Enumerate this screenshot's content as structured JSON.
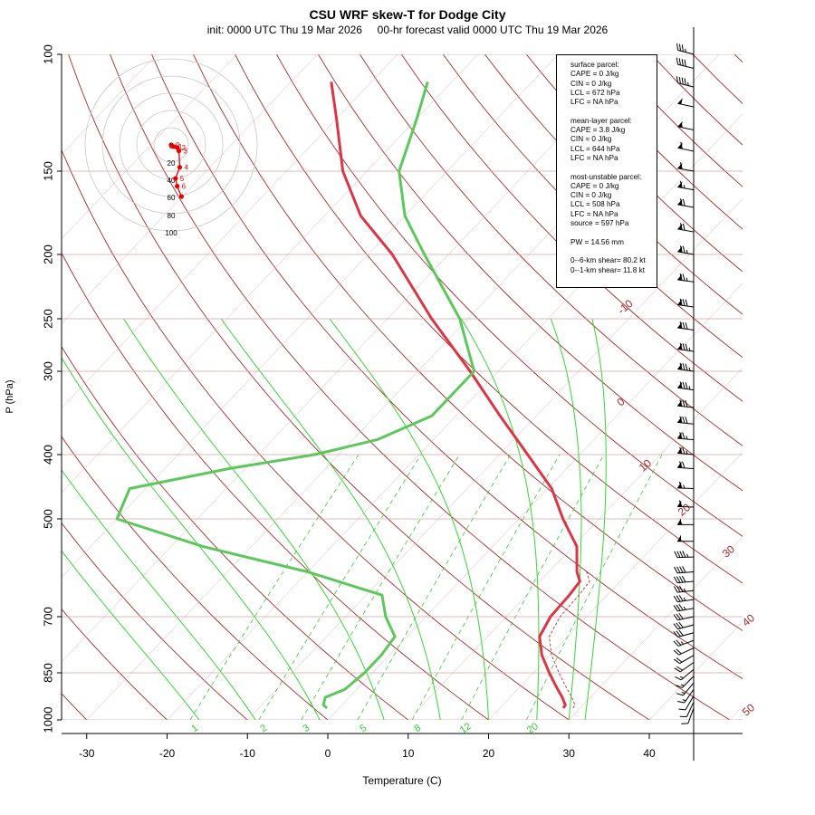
{
  "title": "CSU WRF skew-T for Dodge City",
  "subtitle": "init: 0000 UTC Thu 19 Mar 2026     00-hr forecast valid 0000 UTC Thu 19 Mar 2026",
  "info": {
    "surface": [
      "surface parcel:",
      "CAPE = 0 J/kg",
      "CIN = 0 J/kg",
      "LCL = 672 hPa",
      "LFC = NA hPa"
    ],
    "mean_layer": [
      "mean-layer parcel:",
      "CAPE = 3.8 J/kg",
      "CIN = 0 J/kg",
      "LCL = 644 hPa",
      "LFC = NA hPa"
    ],
    "most_unstable": [
      "most-unstable parcel:",
      "CAPE = 0 J/kg",
      "CIN = 0 J/kg",
      "LCL = 508 hPa",
      "LFC = NA hPa",
      "source = 597 hPa"
    ],
    "pw": [
      "PW =  14.56 mm"
    ],
    "shear": [
      "0--6-km shear= 80.2 kt",
      "0--1-km shear= 11.8 kt"
    ]
  },
  "chart_data": {
    "type": "line",
    "xlabel": "Temperature (C)",
    "ylabel": "P (hPa)",
    "x_ticks": [
      -30,
      -20,
      -10,
      0,
      10,
      20,
      30,
      40
    ],
    "y_ticks": [
      100,
      150,
      200,
      250,
      300,
      400,
      500,
      700,
      850,
      1000
    ],
    "y_scale": "log-like",
    "isotherm_labels": [
      -10,
      0,
      10,
      20,
      30,
      40,
      50
    ],
    "mixing_ratio_labels": [
      "1",
      "2",
      "3",
      "5",
      "8",
      "12",
      "20"
    ],
    "temperature": {
      "color": "#dc3545",
      "p": [
        960,
        950,
        925,
        900,
        875,
        850,
        800,
        750,
        700,
        650,
        620,
        600,
        550,
        500,
        450,
        400,
        350,
        300,
        250,
        200,
        175,
        150,
        125,
        110
      ],
      "t": [
        27.9,
        27.8,
        26.5,
        25,
        23.5,
        22.0,
        19.0,
        16.5,
        15.5,
        15.3,
        15.0,
        13.5,
        10.5,
        5.5,
        0.5,
        -6.5,
        -14.5,
        -23.5,
        -34.5,
        -47.0,
        -55.5,
        -63,
        -70,
        -75
      ]
    },
    "dewpoint": {
      "color": "#5cc85c",
      "p": [
        960,
        950,
        925,
        900,
        850,
        800,
        750,
        700,
        650,
        600,
        550,
        500,
        450,
        420,
        400,
        380,
        350,
        300,
        250,
        200,
        175,
        150,
        125,
        110
      ],
      "d": [
        -1.5,
        -2.3,
        -3.0,
        -1.5,
        -1.0,
        -1.0,
        -1.5,
        -5.0,
        -8.0,
        -20.0,
        -36.0,
        -50.0,
        -52.0,
        -42.0,
        -33.0,
        -27.0,
        -23.0,
        -23.0,
        -31.0,
        -43.0,
        -50.0,
        -56.0,
        -60.0,
        -63.0
      ]
    },
    "hodograph": {
      "color": "#e60000",
      "ring_labels": [
        "0",
        "20",
        "40",
        "60",
        "80",
        "100"
      ],
      "points": [
        {
          "u": 0,
          "v": 0,
          "label": "0"
        },
        {
          "u": 3,
          "v": 2,
          "label": "1"
        },
        {
          "u": 7,
          "v": 3,
          "label": "2"
        },
        {
          "u": 9,
          "v": 7,
          "label": "3"
        },
        {
          "u": 10,
          "v": 26,
          "label": "4"
        },
        {
          "u": 5,
          "v": 39,
          "label": "5"
        },
        {
          "u": 7,
          "v": 48,
          "label": "6"
        },
        {
          "u": 12,
          "v": 60,
          "label": ""
        }
      ]
    },
    "wind_barbs": {
      "p": [
        960,
        940,
        920,
        900,
        880,
        860,
        840,
        820,
        800,
        780,
        760,
        740,
        720,
        700,
        680,
        660,
        640,
        620,
        600,
        570,
        540,
        510,
        480,
        450,
        420,
        400,
        380,
        360,
        340,
        320,
        300,
        280,
        260,
        240,
        220,
        200,
        185,
        170,
        160,
        150,
        140,
        130,
        120,
        112,
        105,
        100
      ],
      "speed_kt": [
        10,
        12,
        12,
        14,
        15,
        15,
        16,
        18,
        20,
        22,
        25,
        28,
        30,
        32,
        34,
        35,
        35,
        38,
        40,
        45,
        50,
        55,
        60,
        65,
        70,
        75,
        75,
        80,
        80,
        85,
        85,
        85,
        80,
        80,
        75,
        75,
        70,
        70,
        65,
        60,
        60,
        55,
        50,
        45,
        40,
        35
      ],
      "dir_deg": [
        200,
        205,
        210,
        215,
        220,
        225,
        230,
        235,
        240,
        245,
        250,
        255,
        255,
        258,
        260,
        262,
        264,
        265,
        266,
        268,
        270,
        270,
        272,
        272,
        274,
        275,
        275,
        276,
        276,
        278,
        278,
        278,
        278,
        278,
        278,
        280,
        280,
        280,
        280,
        280,
        282,
        282,
        282,
        284,
        284,
        285
      ]
    }
  }
}
